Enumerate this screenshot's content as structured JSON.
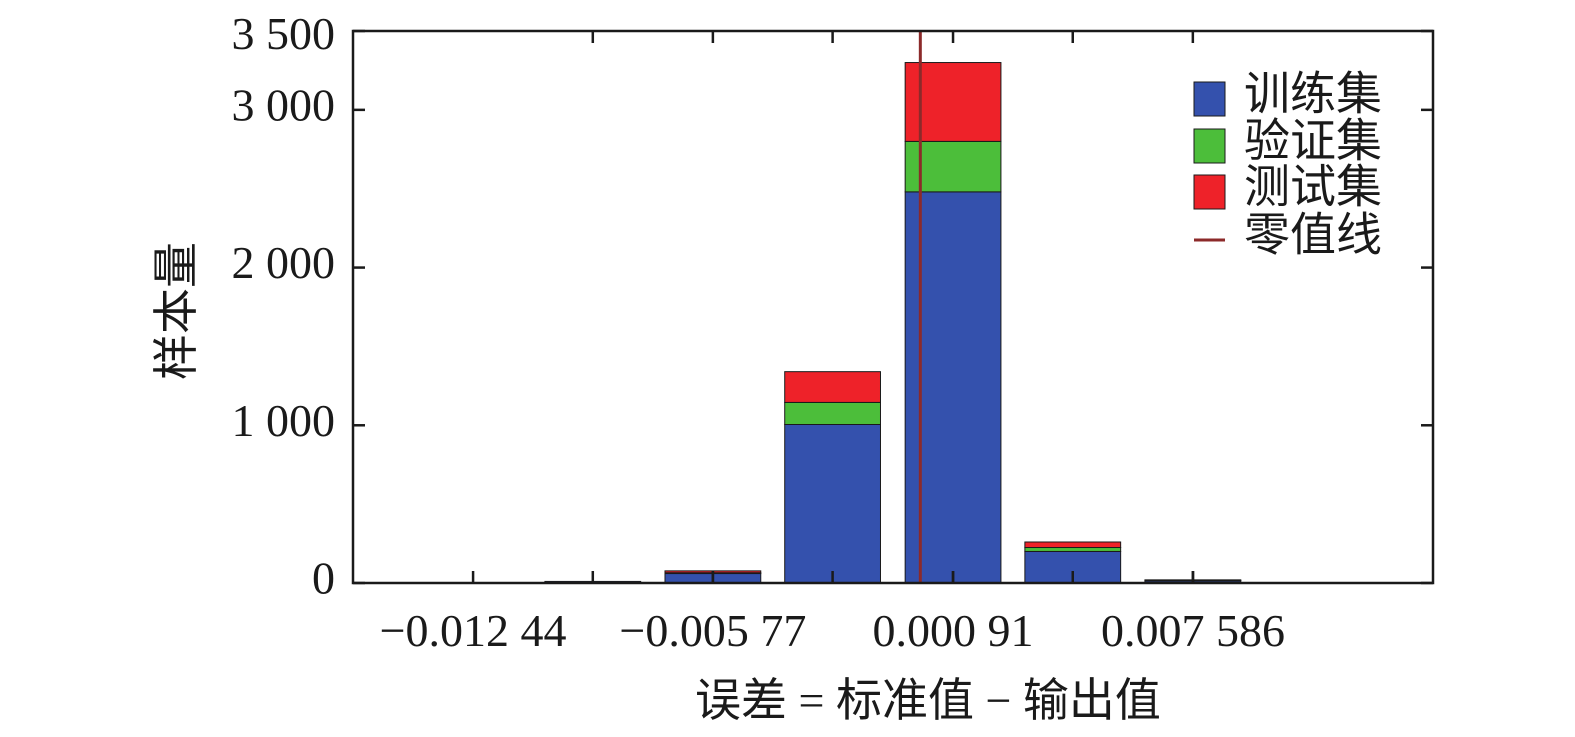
{
  "chart_data": {
    "type": "bar",
    "stacked": true,
    "title": "",
    "xlabel": "误差 = 标准值 − 输出值",
    "ylabel": "样本量",
    "ylim": [
      0,
      3500
    ],
    "yticks": [
      0,
      1000,
      2000,
      3000,
      3500
    ],
    "ytick_labels": [
      "0",
      "1 000",
      "2 000",
      "3 000",
      "3 500"
    ],
    "xlim": [
      -0.01578,
      0.01426
    ],
    "xticks": [
      -0.01244,
      -0.00577,
      0.00091,
      0.007586
    ],
    "xtick_labels": [
      "−0.012 44",
      "−0.005 77",
      "0.000 91",
      "0.007 586"
    ],
    "bin_centers": [
      -0.00911,
      -0.00577,
      -0.00244,
      0.00091,
      0.00424,
      0.00758
    ],
    "bin_width": 0.00333,
    "series": [
      {
        "name": "训练集",
        "color": "#3451ad",
        "values": [
          10,
          60,
          1005,
          2480,
          200,
          15
        ]
      },
      {
        "name": "验证集",
        "color": "#4cbe3a",
        "values": [
          0,
          5,
          140,
          320,
          25,
          3
        ]
      },
      {
        "name": "测试集",
        "color": "#ee2229",
        "values": [
          0,
          12,
          195,
          500,
          35,
          2
        ]
      }
    ],
    "reference_line": {
      "name": "零值线",
      "x": 0,
      "color": "#8c2a2a"
    },
    "grid": false,
    "legend_position": "top-right"
  }
}
